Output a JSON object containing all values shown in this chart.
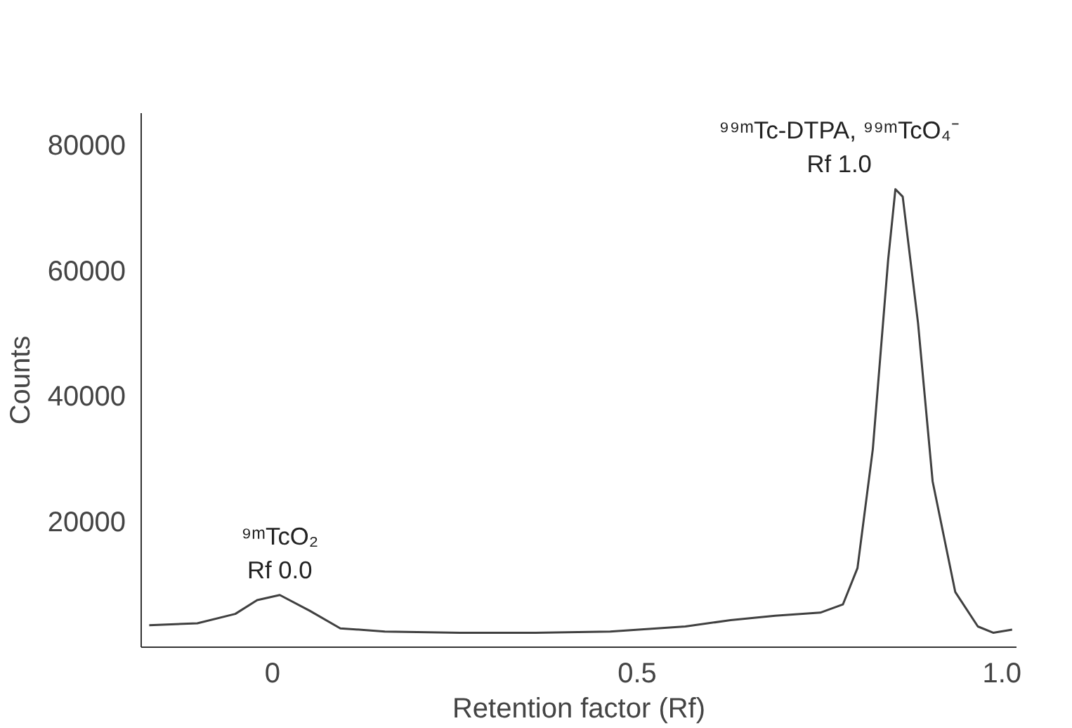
{
  "chart_data": {
    "type": "line",
    "xlabel": "Retention factor (Rf)",
    "ylabel": "Counts",
    "x": [
      -0.169,
      -0.103,
      -0.051,
      -0.021,
      0.01,
      0.051,
      0.093,
      0.154,
      0.257,
      0.36,
      0.463,
      0.566,
      0.628,
      0.689,
      0.751,
      0.782,
      0.802,
      0.823,
      0.844,
      0.854,
      0.864,
      0.885,
      0.905,
      0.936,
      0.967,
      0.988,
      1.014
    ],
    "series": [
      {
        "color": "#404040",
        "values": [
          3500,
          3800,
          5300,
          7500,
          8300,
          5800,
          3000,
          2500,
          2300,
          2300,
          2500,
          3300,
          4300,
          5000,
          5500,
          6800,
          12600,
          31500,
          61600,
          72900,
          71700,
          51600,
          26400,
          8800,
          3300,
          2300,
          2800
        ]
      }
    ],
    "xlim": [
      -0.18,
      1.02
    ],
    "ylim": [
      0,
      85000
    ],
    "xticks": [
      0,
      0.5,
      {
        "value": 1.0,
        "label": "1.0"
      }
    ],
    "yticks": [
      20000,
      40000,
      60000,
      80000
    ],
    "annotations": [
      {
        "text": "⁹ᵐTcO₂\nRf 0.0",
        "x": 0.01,
        "y": 8300
      },
      {
        "text": "⁹⁹ᵐTc-DTPA, ⁹⁹ᵐTcO₄⁻\nRf 1.0",
        "x": 0.854,
        "y": 72900
      }
    ],
    "grid": false,
    "marker": "none",
    "line_style": "solid"
  }
}
